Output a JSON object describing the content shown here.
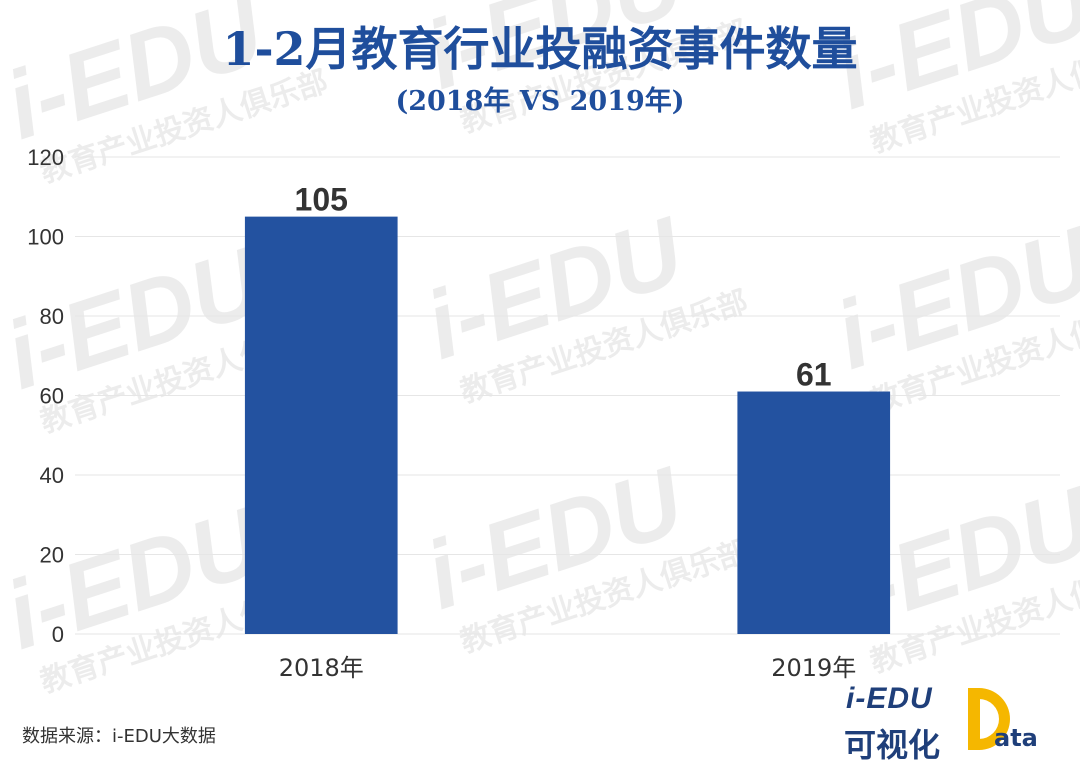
{
  "title": "1-2月教育行业投融资事件数量",
  "subtitle": "(2018年 VS 2019年)",
  "source": "数据来源：i-EDU大数据",
  "watermark": {
    "brand": "i-EDU",
    "tagline": "教育产业投资人俱乐部"
  },
  "logo": {
    "top": "i-EDU",
    "bottom": "可视化",
    "suffix": "ata"
  },
  "colors": {
    "bar": "#2352a0",
    "title": "#1f4e9c",
    "gridline": "#e6e6e6",
    "logo_accent": "#f5b700"
  },
  "chart_data": {
    "type": "bar",
    "categories": [
      "2018年",
      "2019年"
    ],
    "values": [
      105,
      61
    ],
    "data_labels": [
      "105",
      "61"
    ],
    "y_ticks": [
      "0",
      "20",
      "40",
      "60",
      "80",
      "100",
      "120"
    ],
    "ylim": [
      0,
      120
    ],
    "grid": true,
    "legend": "none",
    "title": "1-2月教育行业投融资事件数量",
    "subtitle": "(2018年 VS 2019年)",
    "xlabel": "",
    "ylabel": ""
  }
}
